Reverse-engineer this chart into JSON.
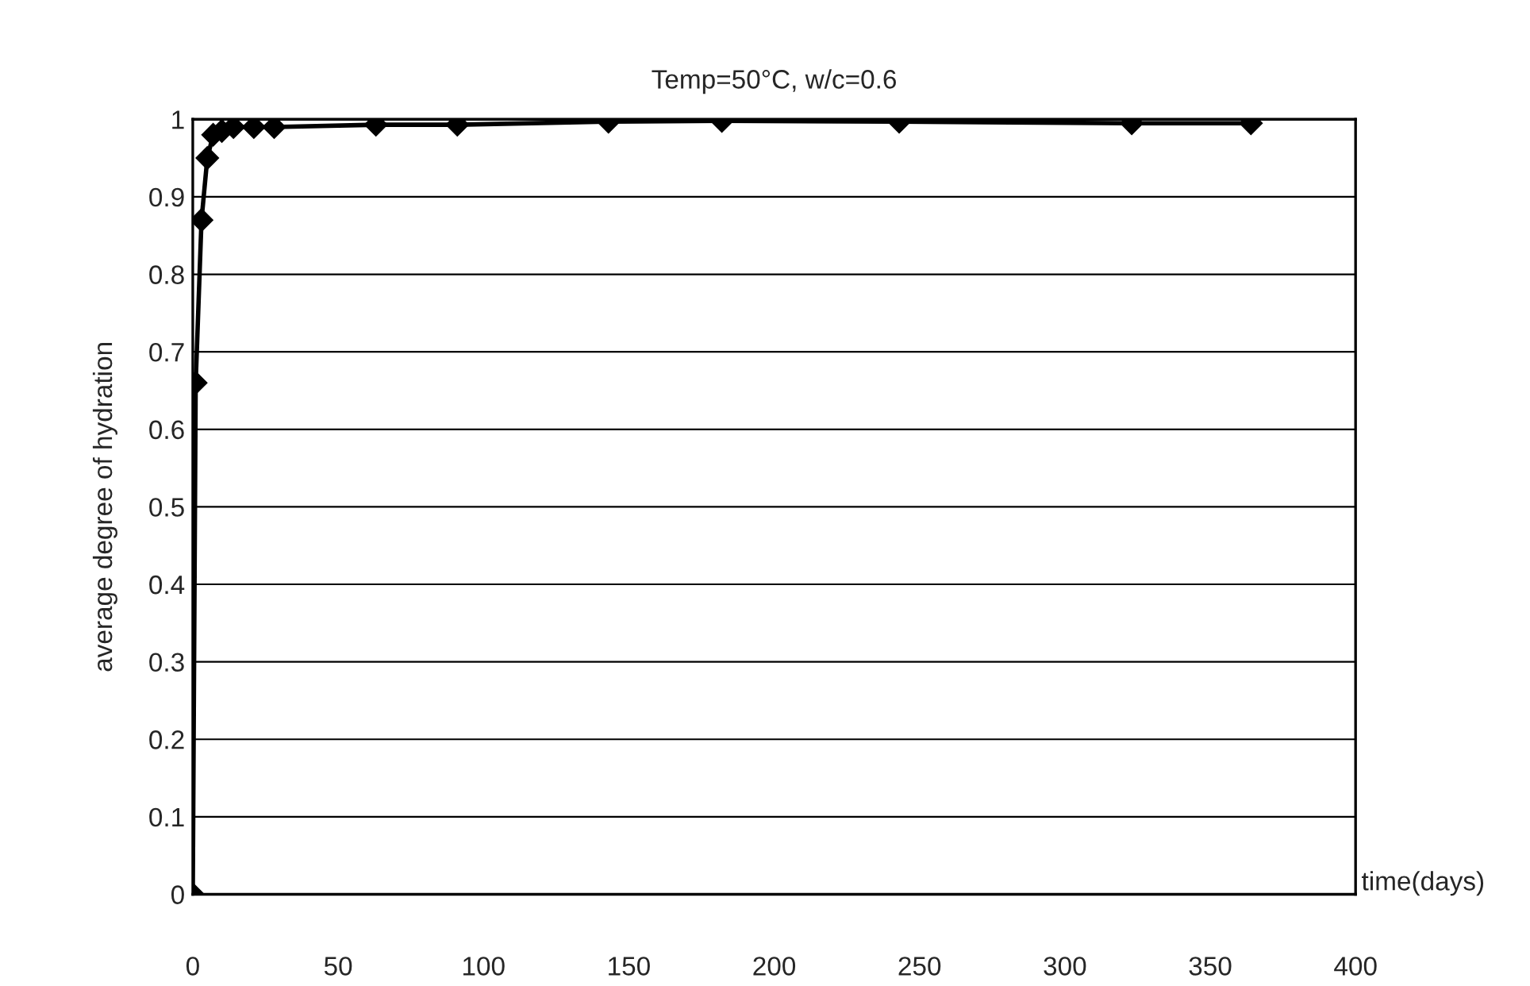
{
  "chart_data": {
    "type": "line",
    "title": "Temp=50°C, w/c=0.6",
    "xlabel": "time(days)",
    "ylabel": "average degree of hydration",
    "x": [
      0,
      1,
      3,
      5,
      7,
      10,
      14,
      21,
      28,
      63,
      91,
      143,
      182,
      243,
      323,
      364
    ],
    "series": [
      {
        "color": "#000000",
        "values": [
          0,
          0.66,
          0.87,
          0.95,
          0.98,
          0.985,
          0.99,
          0.99,
          0.99,
          0.993,
          0.993,
          0.997,
          0.998,
          0.997,
          0.995,
          0.995
        ]
      }
    ],
    "xlim": [
      0,
      400
    ],
    "xticks": [
      0,
      50,
      100,
      150,
      200,
      250,
      300,
      350,
      400
    ],
    "ylim": [
      0,
      1
    ],
    "yticks": [
      0,
      0.1,
      0.2,
      0.3,
      0.4,
      0.5,
      0.6,
      0.7,
      0.8,
      0.9,
      1
    ],
    "grid": "y",
    "marker": "diamond",
    "line_style": "solid"
  }
}
